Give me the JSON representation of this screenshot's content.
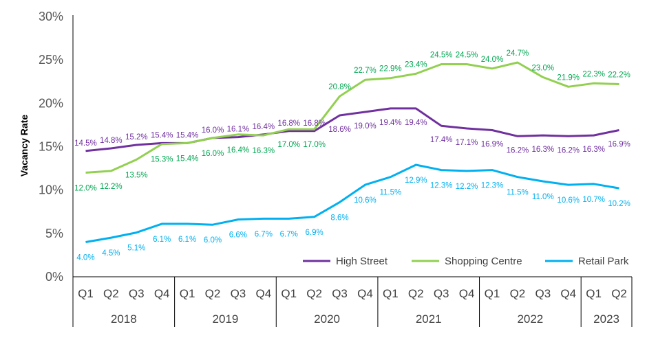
{
  "chart_data": {
    "type": "line",
    "ylabel": "Vacancy Rate",
    "ylim": [
      0,
      30
    ],
    "yticks": [
      "0%",
      "5%",
      "10%",
      "15%",
      "20%",
      "25%",
      "30%"
    ],
    "grid": false,
    "legend_position": "bottom-right",
    "categories": [
      "Q1",
      "Q2",
      "Q3",
      "Q4",
      "Q1",
      "Q2",
      "Q3",
      "Q4",
      "Q1",
      "Q2",
      "Q3",
      "Q4",
      "Q1",
      "Q2",
      "Q3",
      "Q4",
      "Q1",
      "Q2",
      "Q3",
      "Q4",
      "Q1",
      "Q2"
    ],
    "years": [
      {
        "label": "2018",
        "count": 4
      },
      {
        "label": "2019",
        "count": 4
      },
      {
        "label": "2020",
        "count": 4
      },
      {
        "label": "2021",
        "count": 4
      },
      {
        "label": "2022",
        "count": 4
      },
      {
        "label": "2023",
        "count": 2
      }
    ],
    "series": [
      {
        "name": "High Street",
        "color": "#70309f",
        "label_color": "#7030a0",
        "values": [
          14.5,
          14.8,
          15.2,
          15.4,
          15.4,
          16.0,
          16.1,
          16.4,
          16.8,
          16.8,
          18.6,
          19.0,
          19.4,
          19.4,
          17.4,
          17.1,
          16.9,
          16.2,
          16.3,
          16.2,
          16.3,
          16.9
        ],
        "labels": [
          "14.5%",
          "14.8%",
          "15.2%",
          "15.4%",
          "15.4%",
          "16.0%",
          "16.1%",
          "16.4%",
          "16.8%",
          "16.8%",
          "18.6%",
          "19.0%",
          "19.4%",
          "19.4%",
          "17.4%",
          "17.1%",
          "16.9%",
          "16.2%",
          "16.3%",
          "16.2%",
          "16.3%",
          "16.9%"
        ]
      },
      {
        "name": "Shopping Centre",
        "color": "#92d050",
        "label_color": "#00a651",
        "values": [
          12.0,
          12.2,
          13.5,
          15.3,
          15.4,
          16.0,
          16.4,
          16.3,
          17.0,
          17.0,
          20.8,
          22.7,
          22.9,
          23.4,
          24.5,
          24.5,
          24.0,
          24.7,
          23.0,
          21.9,
          22.3,
          22.2
        ],
        "labels": [
          "12.0%",
          "12.2%",
          "13.5%",
          "15.3%",
          "15.4%",
          "16.0%",
          "16.4%",
          "16.3%",
          "17.0%",
          "17.0%",
          "20.8%",
          "22.7%",
          "22.9%",
          "23.4%",
          "24.5%",
          "24.5%",
          "24.0%",
          "24.7%",
          "23.0%",
          "21.9%",
          "22.3%",
          "22.2%"
        ]
      },
      {
        "name": "Retail Park",
        "color": "#00b0f0",
        "label_color": "#00b0f0",
        "values": [
          4.0,
          4.5,
          5.1,
          6.1,
          6.1,
          6.0,
          6.6,
          6.7,
          6.7,
          6.9,
          8.6,
          10.6,
          11.5,
          12.9,
          12.3,
          12.2,
          12.3,
          11.5,
          11.0,
          10.6,
          10.7,
          10.2
        ],
        "labels": [
          "4.0%",
          "4.5%",
          "5.1%",
          "6.1%",
          "6.1%",
          "6.0%",
          "6.6%",
          "6.7%",
          "6.7%",
          "6.9%",
          "8.6%",
          "10.6%",
          "11.5%",
          "12.9%",
          "12.3%",
          "12.2%",
          "12.3%",
          "11.5%",
          "11.0%",
          "10.6%",
          "10.7%",
          "10.2%"
        ]
      }
    ]
  }
}
